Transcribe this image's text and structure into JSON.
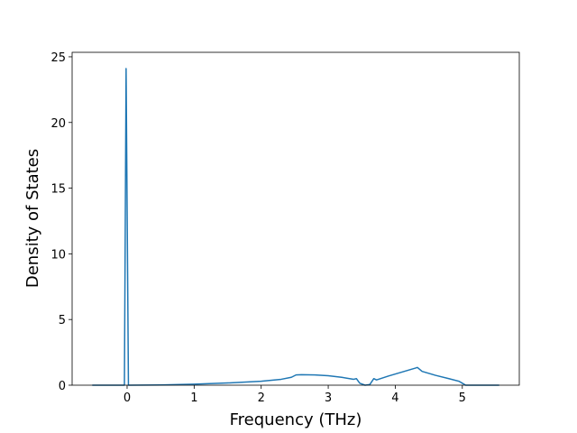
{
  "chart_data": {
    "type": "line",
    "xlabel": "Frequency (THz)",
    "ylabel": "Density of States",
    "x": [
      -0.52,
      -0.04,
      -0.015,
      0.02,
      0.5,
      1.0,
      1.5,
      2.0,
      2.3,
      2.45,
      2.52,
      2.6,
      2.8,
      3.0,
      3.2,
      3.38,
      3.42,
      3.47,
      3.55,
      3.62,
      3.68,
      3.72,
      3.9,
      4.1,
      4.3,
      4.33,
      4.4,
      4.6,
      4.8,
      4.95,
      5.0,
      5.05,
      5.55
    ],
    "series": [
      {
        "color": "#1f77b4",
        "values": [
          0,
          0,
          24.1,
          0,
          0.02,
          0.08,
          0.17,
          0.3,
          0.45,
          0.6,
          0.78,
          0.8,
          0.78,
          0.72,
          0.6,
          0.45,
          0.5,
          0.15,
          0.0,
          0.05,
          0.5,
          0.4,
          0.7,
          1.0,
          1.3,
          1.35,
          1.05,
          0.75,
          0.5,
          0.3,
          0.15,
          0,
          0
        ]
      }
    ],
    "xlim": [
      -0.82,
      5.85
    ],
    "ylim": [
      0,
      25.34
    ],
    "xticks": [
      0,
      1,
      2,
      3,
      4,
      5
    ],
    "yticks": [
      0,
      5,
      10,
      15,
      20,
      25
    ]
  }
}
